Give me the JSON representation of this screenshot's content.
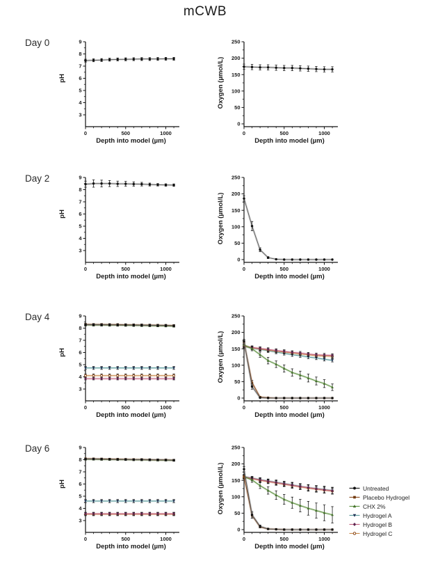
{
  "title": "mCWB",
  "rows": [
    {
      "label": "Day 0"
    },
    {
      "label": "Day 2"
    },
    {
      "label": "Day 4"
    },
    {
      "label": "Day 6"
    }
  ],
  "x_axis": {
    "label": "Depth into model (µm)",
    "ticks": [
      0,
      500,
      1000
    ],
    "minor_step": 100,
    "max": 1160
  },
  "x_values": [
    0,
    100,
    200,
    300,
    400,
    500,
    600,
    700,
    800,
    900,
    1000,
    1100
  ],
  "legend": [
    {
      "name": "Untreated",
      "line": "#5f5f5f",
      "marker_color": "#111111",
      "marker": "circle"
    },
    {
      "name": "Placebo Hydrogel",
      "line": "#8a4a1c",
      "marker_color": "#703a10",
      "marker": "square"
    },
    {
      "name": "CHX 2%",
      "line": "#5a8f3c",
      "marker_color": "#44702b",
      "marker": "triangle"
    },
    {
      "name": "Hydrogel A",
      "line": "#58999a",
      "marker_color": "#1d2f52",
      "marker": "triangle-down"
    },
    {
      "name": "Hydrogel B",
      "line": "#c2607e",
      "marker_color": "#5e2550",
      "marker": "diamond"
    },
    {
      "name": "Hydrogel C",
      "line": "#c98a4b",
      "marker_color": "#8a4a1c",
      "marker": "circle-open"
    }
  ],
  "chart_data": [
    {
      "id": "day0-ph",
      "day": "Day 0",
      "type": "line",
      "ylabel": "pH",
      "yticks": [
        3,
        4,
        5,
        6,
        7,
        8,
        9
      ],
      "series": [
        {
          "name": "Untreated",
          "values": [
            7.45,
            7.48,
            7.5,
            7.53,
            7.55,
            7.56,
            7.57,
            7.58,
            7.58,
            7.59,
            7.6,
            7.6
          ],
          "errors": 0.12
        }
      ]
    },
    {
      "id": "day0-oxygen",
      "day": "Day 0",
      "type": "line",
      "ylabel": "Oxygen (µmol/L)",
      "yticks": [
        0,
        50,
        100,
        150,
        200,
        250
      ],
      "series": [
        {
          "name": "Untreated",
          "values": [
            174,
            173,
            172,
            172,
            171,
            170,
            170,
            169,
            168,
            167,
            166,
            166
          ],
          "errors": 8
        }
      ]
    },
    {
      "id": "day2-ph",
      "day": "Day 2",
      "type": "line",
      "ylabel": "pH",
      "yticks": [
        3,
        4,
        5,
        6,
        7,
        8,
        9
      ],
      "series": [
        {
          "name": "Untreated",
          "values": [
            8.45,
            8.5,
            8.5,
            8.5,
            8.48,
            8.48,
            8.46,
            8.45,
            8.42,
            8.4,
            8.38,
            8.37
          ],
          "errors": [
            0.25,
            0.3,
            0.28,
            0.25,
            0.22,
            0.2,
            0.18,
            0.15,
            0.12,
            0.1,
            0.1,
            0.1
          ]
        }
      ]
    },
    {
      "id": "day2-oxygen",
      "day": "Day 2",
      "type": "line",
      "ylabel": "Oxygen (µmol/L)",
      "yticks": [
        0,
        50,
        100,
        150,
        200,
        250
      ],
      "series": [
        {
          "name": "Untreated",
          "values": [
            186,
            102,
            30,
            6,
            1,
            0,
            0,
            0,
            0,
            0,
            0,
            0
          ],
          "errors": [
            8,
            14,
            6,
            3,
            1,
            0,
            0,
            0,
            0,
            0,
            0,
            0
          ]
        }
      ]
    },
    {
      "id": "day4-ph",
      "day": "Day 4",
      "type": "line",
      "ylabel": "pH",
      "yticks": [
        3,
        4,
        5,
        6,
        7,
        8,
        9
      ],
      "series": [
        {
          "name": "CHX 2%",
          "values": [
            8.26,
            8.25,
            8.25,
            8.24,
            8.24,
            8.23,
            8.22,
            8.21,
            8.2,
            8.19,
            8.18,
            8.16
          ],
          "errors": 0.08
        },
        {
          "name": "Placebo Hydrogel",
          "values": [
            8.31,
            8.3,
            8.3,
            8.29,
            8.29,
            8.28,
            8.27,
            8.26,
            8.25,
            8.24,
            8.23,
            8.21
          ],
          "errors": 0.08
        },
        {
          "name": "Untreated",
          "values": [
            8.28,
            8.28,
            8.27,
            8.27,
            8.26,
            8.26,
            8.25,
            8.24,
            8.23,
            8.22,
            8.21,
            8.19
          ],
          "errors": 0.08
        },
        {
          "name": "Hydrogel A",
          "values": [
            4.73,
            4.73,
            4.73,
            4.73,
            4.73,
            4.73,
            4.73,
            4.73,
            4.73,
            4.73,
            4.73,
            4.73
          ],
          "errors": 0.12
        },
        {
          "name": "Hydrogel C",
          "values": [
            4.1,
            4.1,
            4.1,
            4.1,
            4.1,
            4.1,
            4.1,
            4.1,
            4.1,
            4.1,
            4.1,
            4.1
          ],
          "errors": 0.14
        },
        {
          "name": "Hydrogel B",
          "values": [
            3.85,
            3.85,
            3.85,
            3.85,
            3.85,
            3.85,
            3.85,
            3.85,
            3.85,
            3.85,
            3.85,
            3.85
          ],
          "errors": 0.1
        }
      ]
    },
    {
      "id": "day4-oxygen",
      "day": "Day 4",
      "type": "line",
      "ylabel": "Oxygen (µmol/L)",
      "yticks": [
        0,
        50,
        100,
        150,
        200,
        250
      ],
      "series": [
        {
          "name": "Hydrogel A",
          "values": [
            157,
            152,
            148,
            144,
            140,
            136,
            132,
            129,
            125,
            122,
            118,
            115
          ],
          "errors": 5
        },
        {
          "name": "Hydrogel C",
          "values": [
            158,
            153,
            150,
            146,
            143,
            140,
            137,
            134,
            132,
            129,
            128,
            127
          ],
          "errors": 5
        },
        {
          "name": "Hydrogel B",
          "values": [
            159,
            154,
            151,
            148,
            145,
            142,
            139,
            137,
            134,
            132,
            131,
            130
          ],
          "errors": 5
        },
        {
          "name": "CHX 2%",
          "values": [
            162,
            150,
            132,
            114,
            103,
            90,
            78,
            70,
            61,
            52,
            44,
            33
          ],
          "errors": [
            6,
            6,
            8,
            10,
            10,
            11,
            11,
            12,
            12,
            12,
            12,
            10
          ]
        },
        {
          "name": "Placebo Hydrogel",
          "values": [
            170,
            47,
            3,
            1,
            0,
            0,
            0,
            0,
            0,
            0,
            0,
            0
          ],
          "errors": [
            6,
            7,
            2,
            1,
            0,
            0,
            0,
            0,
            0,
            0,
            0,
            0
          ]
        },
        {
          "name": "Untreated",
          "values": [
            173,
            35,
            1,
            0,
            0,
            0,
            0,
            0,
            0,
            0,
            0,
            0
          ],
          "errors": [
            6,
            8,
            1,
            0,
            0,
            0,
            0,
            0,
            0,
            0,
            0,
            0
          ]
        }
      ]
    },
    {
      "id": "day6-ph",
      "day": "Day 6",
      "type": "line",
      "ylabel": "pH",
      "yticks": [
        3,
        4,
        5,
        6,
        7,
        8,
        9
      ],
      "series": [
        {
          "name": "CHX 2%",
          "values": [
            8.03,
            8.03,
            8.02,
            8.01,
            8.0,
            8.0,
            7.99,
            7.98,
            7.97,
            7.96,
            7.95,
            7.94
          ],
          "errors": 0.07
        },
        {
          "name": "Placebo Hydrogel",
          "values": [
            8.08,
            8.07,
            8.06,
            8.05,
            8.04,
            8.03,
            8.02,
            8.01,
            8.0,
            7.99,
            7.98,
            7.96
          ],
          "errors": 0.07
        },
        {
          "name": "Untreated",
          "values": [
            8.05,
            8.05,
            8.04,
            8.03,
            8.02,
            8.01,
            8.0,
            8.0,
            7.99,
            7.98,
            7.97,
            7.95
          ],
          "errors": 0.07
        },
        {
          "name": "Hydrogel A",
          "values": [
            4.6,
            4.6,
            4.6,
            4.6,
            4.6,
            4.6,
            4.6,
            4.6,
            4.6,
            4.6,
            4.6,
            4.6
          ],
          "errors": 0.13
        },
        {
          "name": "Hydrogel C",
          "values": [
            3.52,
            3.52,
            3.52,
            3.52,
            3.52,
            3.52,
            3.52,
            3.52,
            3.52,
            3.52,
            3.52,
            3.52
          ],
          "errors": 0.12
        },
        {
          "name": "Hydrogel B",
          "values": [
            3.56,
            3.56,
            3.56,
            3.56,
            3.56,
            3.56,
            3.56,
            3.56,
            3.56,
            3.56,
            3.56,
            3.56
          ],
          "errors": 0.12
        }
      ]
    },
    {
      "id": "day6-oxygen",
      "day": "Day 6",
      "type": "line",
      "ylabel": "Oxygen (µmol/L)",
      "yticks": [
        0,
        50,
        100,
        150,
        200,
        250
      ],
      "series": [
        {
          "name": "Hydrogel A",
          "values": [
            161,
            157,
            152,
            148,
            144,
            140,
            136,
            132,
            128,
            125,
            122,
            119
          ],
          "errors": [
            5,
            5,
            6,
            6,
            7,
            7,
            8,
            8,
            9,
            9,
            10,
            10
          ]
        },
        {
          "name": "Hydrogel C",
          "values": [
            159,
            155,
            150,
            146,
            142,
            138,
            134,
            130,
            126,
            123,
            120,
            117
          ],
          "errors": [
            5,
            5,
            6,
            6,
            7,
            7,
            8,
            8,
            9,
            9,
            9,
            9
          ]
        },
        {
          "name": "Hydrogel B",
          "values": [
            160,
            156,
            151,
            147,
            143,
            139,
            135,
            131,
            128,
            124,
            121,
            118
          ],
          "errors": [
            5,
            5,
            6,
            6,
            7,
            7,
            8,
            8,
            9,
            9,
            9,
            9
          ]
        },
        {
          "name": "CHX 2%",
          "values": [
            161,
            151,
            134,
            119,
            105,
            92,
            82,
            73,
            65,
            58,
            51,
            45
          ],
          "errors": [
            6,
            7,
            9,
            11,
            13,
            15,
            17,
            19,
            21,
            23,
            24,
            25
          ]
        },
        {
          "name": "Placebo Hydrogel",
          "values": [
            162,
            43,
            8,
            2,
            1,
            0,
            0,
            0,
            0,
            0,
            0,
            0
          ],
          "errors": [
            6,
            8,
            3,
            1,
            0,
            0,
            0,
            0,
            0,
            0,
            0,
            0
          ]
        },
        {
          "name": "Untreated",
          "values": [
            184,
            45,
            10,
            2,
            1,
            0,
            0,
            0,
            0,
            0,
            0,
            0
          ],
          "errors": [
            8,
            10,
            4,
            1,
            0,
            0,
            0,
            0,
            0,
            0,
            0,
            0
          ]
        }
      ]
    }
  ]
}
